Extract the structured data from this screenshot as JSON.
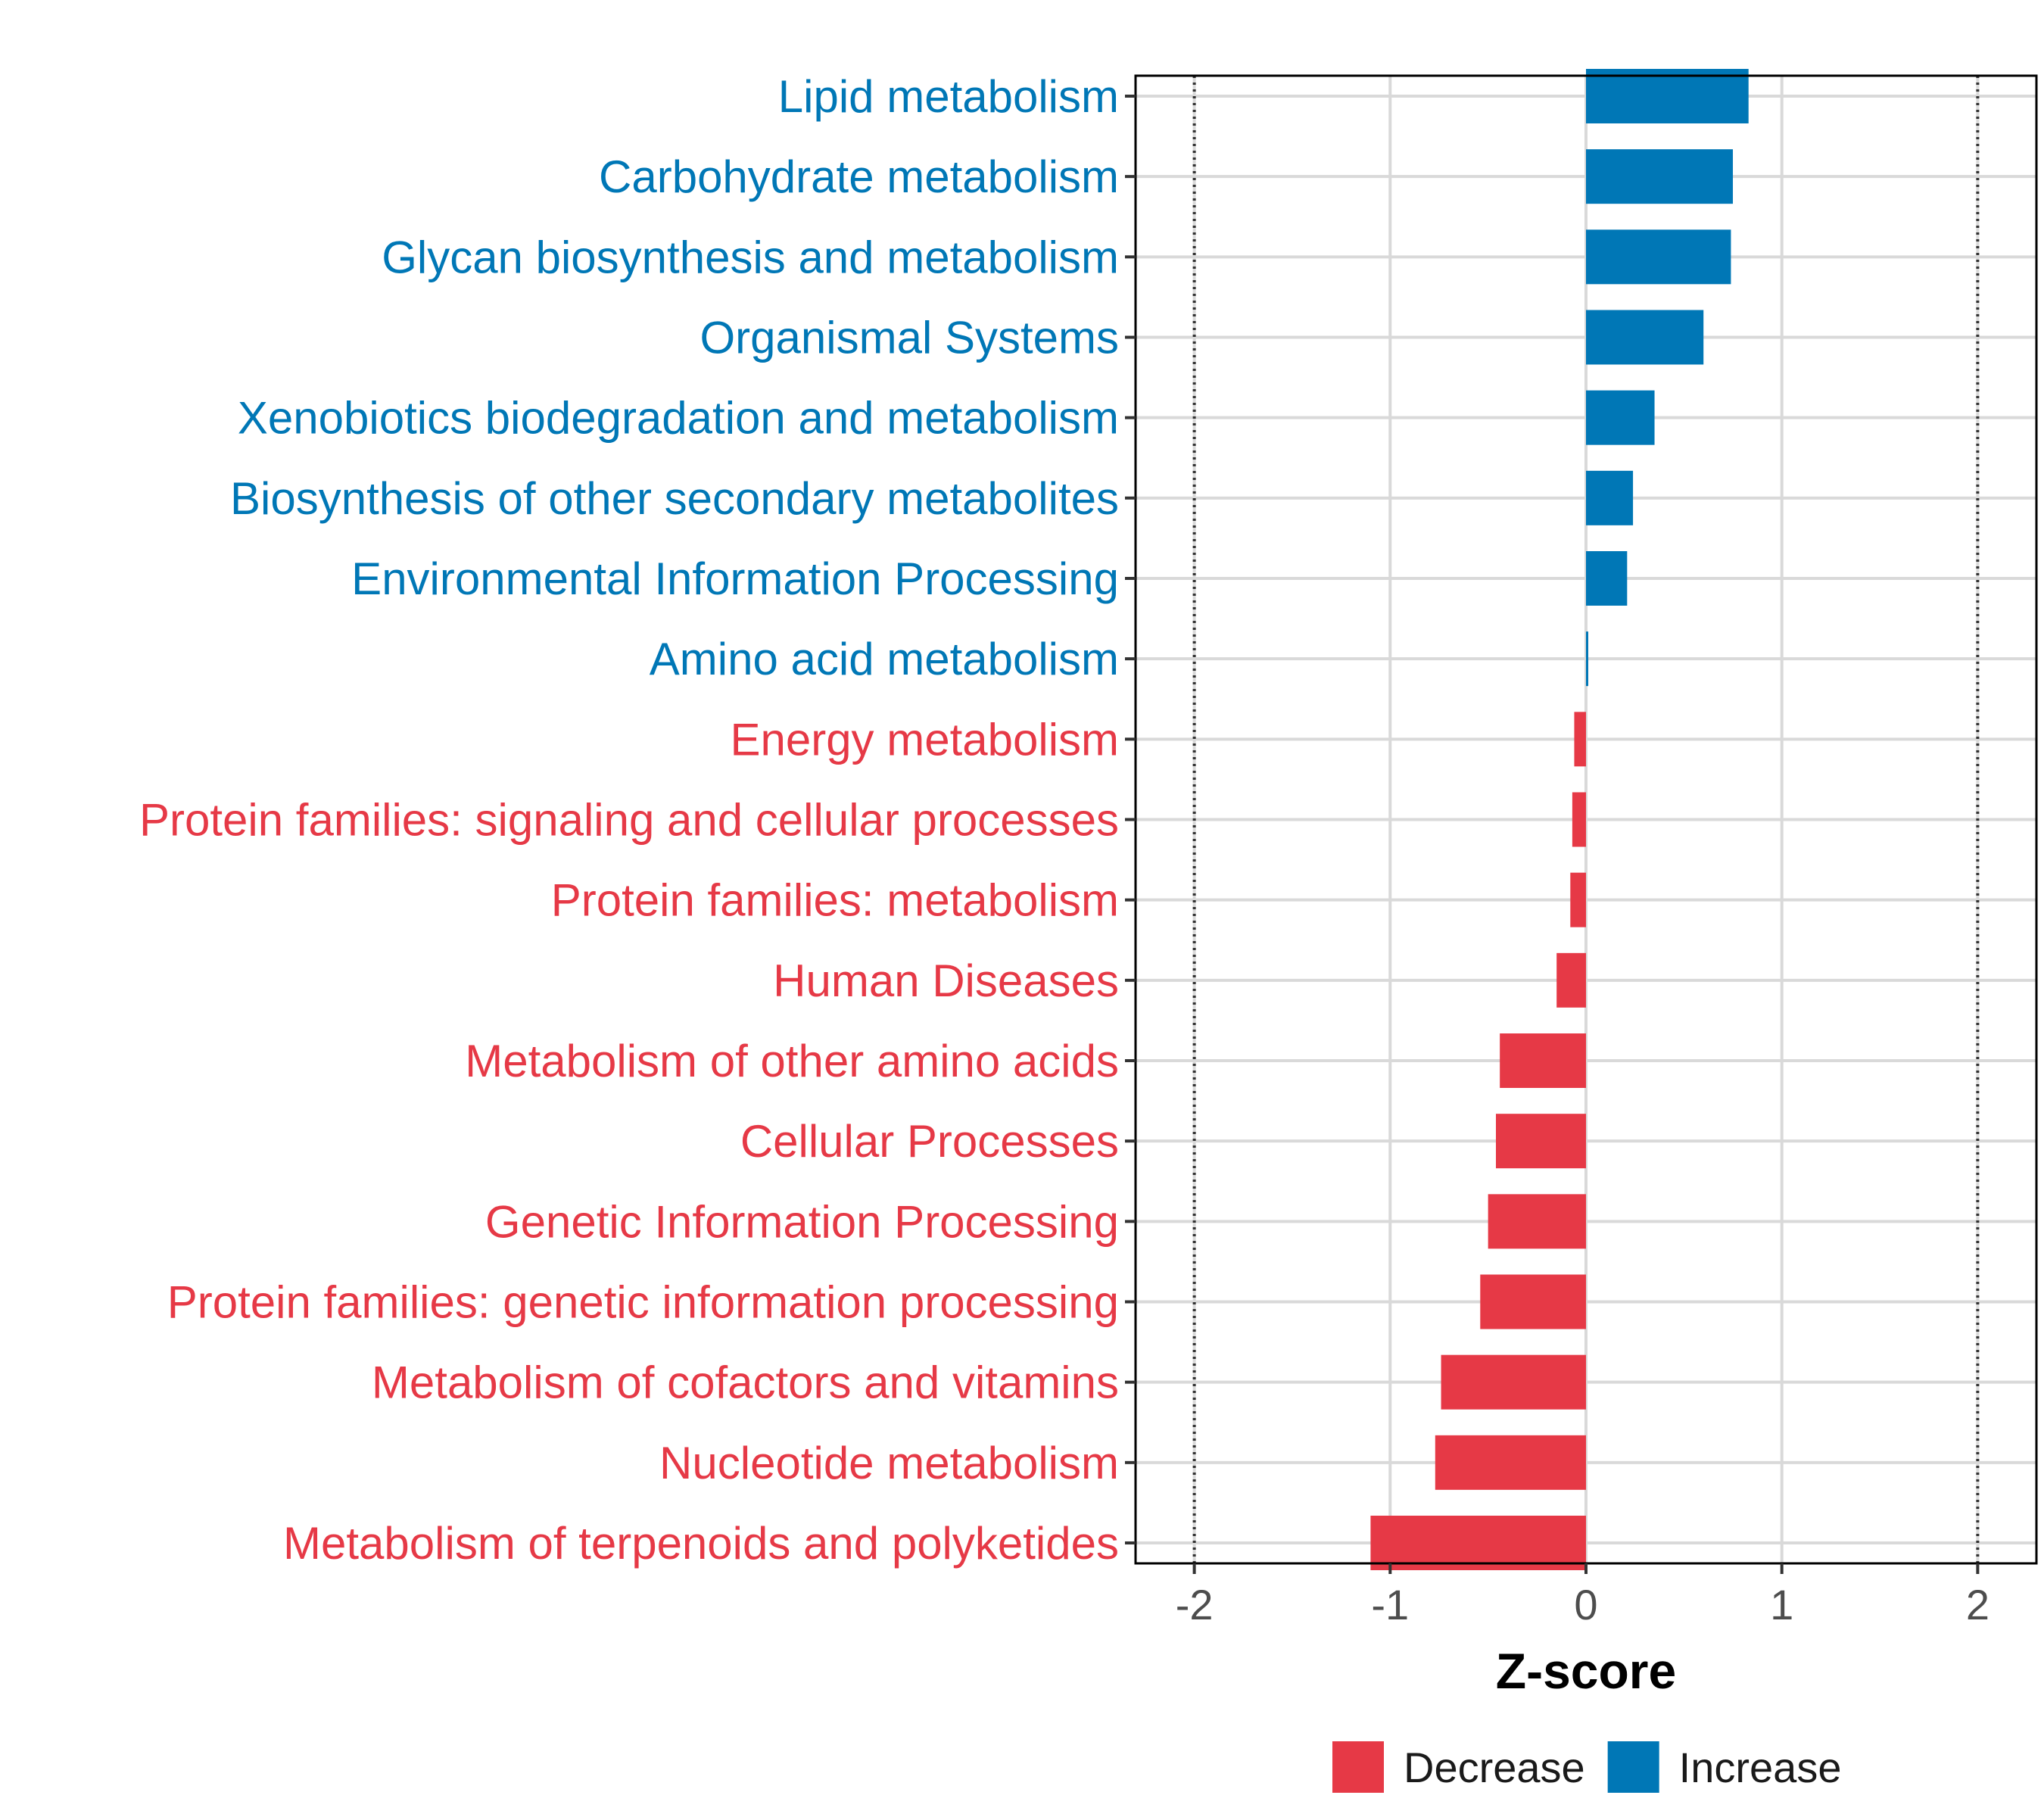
{
  "chart_data": {
    "type": "bar",
    "orientation": "horizontal",
    "title": "",
    "xlabel": "Z-score",
    "ylabel": "",
    "xlim": [
      -2.3,
      2.3
    ],
    "xticks": [
      -2,
      -1,
      0,
      1,
      2
    ],
    "xtick_labels": [
      "-2",
      "-1",
      "0",
      "1",
      "2"
    ],
    "reference_lines": [
      -2,
      2
    ],
    "grid": true,
    "categories": [
      "Lipid metabolism",
      "Carbohydrate metabolism",
      "Glycan biosynthesis and metabolism",
      "Organismal Systems",
      "Xenobiotics biodegradation and metabolism",
      "Biosynthesis of other secondary metabolites",
      "Environmental Information Processing",
      "Amino acid metabolism",
      "Energy metabolism",
      "Protein families: signaling and cellular processes",
      "Protein families: metabolism",
      "Human Diseases",
      "Metabolism of other amino acids",
      "Cellular Processes",
      "Genetic Information Processing",
      "Protein families: genetic information processing",
      "Metabolism of cofactors and vitamins",
      "Nucleotide metabolism",
      "Metabolism of terpenoids and polyketides"
    ],
    "values": [
      0.83,
      0.75,
      0.74,
      0.6,
      0.35,
      0.24,
      0.21,
      0.01,
      -0.06,
      -0.07,
      -0.08,
      -0.15,
      -0.44,
      -0.46,
      -0.5,
      -0.54,
      -0.74,
      -0.77,
      -1.1
    ],
    "groups": [
      "Increase",
      "Increase",
      "Increase",
      "Increase",
      "Increase",
      "Increase",
      "Increase",
      "Increase",
      "Decrease",
      "Decrease",
      "Decrease",
      "Decrease",
      "Decrease",
      "Decrease",
      "Decrease",
      "Decrease",
      "Decrease",
      "Decrease",
      "Decrease"
    ],
    "legend": {
      "position": "bottom",
      "items": [
        {
          "label": "Decrease",
          "color": "#e63946"
        },
        {
          "label": "Increase",
          "color": "#0077b6"
        }
      ]
    },
    "colors": {
      "Decrease": "#e63946",
      "Increase": "#0077b6"
    }
  }
}
